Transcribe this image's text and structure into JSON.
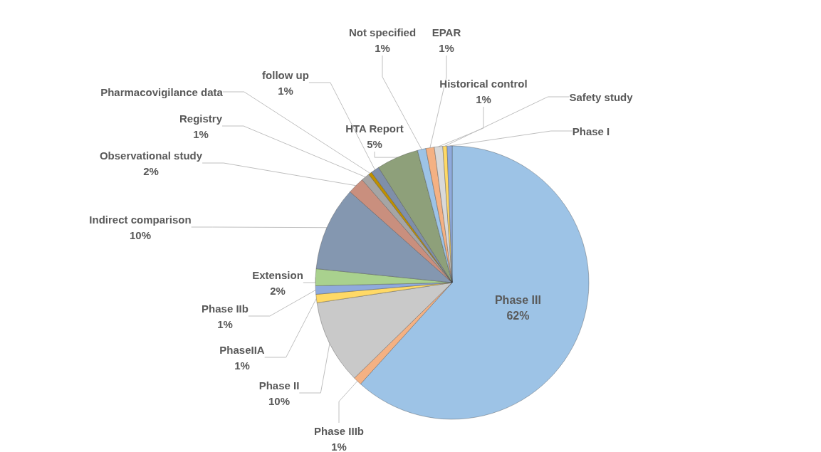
{
  "chart_data": {
    "type": "pie",
    "categories": [
      "Phase III",
      "Phase IIIb",
      "Phase II",
      "PhaseIIA",
      "Phase IIb",
      "Extension",
      "Indirect comparison",
      "Observational study",
      "Registry",
      "Pharmacovigilance data",
      "follow up",
      "HTA Report",
      "Not specified",
      "EPAR",
      "Historical control",
      "Safety study",
      "Phase I"
    ],
    "values": [
      62,
      1,
      10,
      1,
      1,
      2,
      10,
      2,
      1,
      0.4,
      1,
      5,
      1,
      1,
      1,
      0.5,
      0.6
    ],
    "value_labels": [
      "62%",
      "1%",
      "10%",
      "1%",
      "1%",
      "2%",
      "10%",
      "2%",
      "1%",
      null,
      "1%",
      "5%",
      "1%",
      "1%",
      "1%",
      null,
      null
    ],
    "colors": [
      "#9dc3e6",
      "#f4b183",
      "#c9c9c9",
      "#ffd966",
      "#8faadc",
      "#a9d18e",
      "#8497b0",
      "#c98f7e",
      "#a5a5a5",
      "#bf9000",
      "#7f8fa9",
      "#8ea07a",
      "#9dc3e6",
      "#f4b183",
      "#d9d9d9",
      "#ffd966",
      "#8faadc"
    ],
    "legend": false
  }
}
